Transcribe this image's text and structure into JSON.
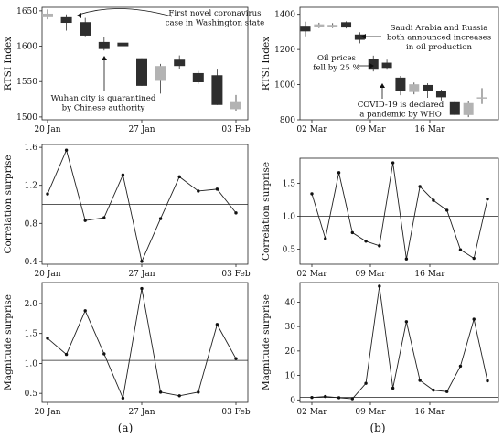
{
  "panel_labels": [
    "(a)",
    "(b)"
  ],
  "chart_data": [
    {
      "id": "a-rtsi",
      "type": "candlestick",
      "ylabel": "RTSI Index",
      "ylim": [
        1496,
        1655
      ],
      "yticks": [
        1500,
        1550,
        1600,
        1650
      ],
      "xticks": [
        "20 Jan",
        "27 Jan",
        "03 Feb"
      ],
      "candles": [
        {
          "open": 1646,
          "close": 1641,
          "high": 1652,
          "low": 1638,
          "shade": "light"
        },
        {
          "open": 1641,
          "close": 1633,
          "high": 1645,
          "low": 1622,
          "shade": "dark"
        },
        {
          "open": 1634,
          "close": 1615,
          "high": 1640,
          "low": 1614,
          "shade": "dark"
        },
        {
          "open": 1606,
          "close": 1596,
          "high": 1613,
          "low": 1594,
          "shade": "dark"
        },
        {
          "open": 1605,
          "close": 1600,
          "high": 1611,
          "low": 1595,
          "shade": "dark"
        },
        {
          "open": 1583,
          "close": 1544,
          "high": 1583,
          "low": 1544,
          "shade": "dark"
        },
        {
          "open": 1572,
          "close": 1551,
          "high": 1575,
          "low": 1533,
          "shade": "light"
        },
        {
          "open": 1581,
          "close": 1572,
          "high": 1587,
          "low": 1568,
          "shade": "dark"
        },
        {
          "open": 1562,
          "close": 1549,
          "high": 1565,
          "low": 1547,
          "shade": "dark"
        },
        {
          "open": 1559,
          "close": 1517,
          "high": 1567,
          "low": 1517,
          "shade": "dark"
        },
        {
          "open": 1521,
          "close": 1511,
          "high": 1531,
          "low": 1509,
          "shade": "light"
        }
      ],
      "annotations": [
        {
          "lines": [
            "First novel coronavirus",
            "case in Washington state"
          ]
        },
        {
          "lines": [
            "Wuhan city is quarantined",
            "by Chinese authority"
          ]
        }
      ]
    },
    {
      "id": "b-rtsi",
      "type": "candlestick",
      "ylabel": "RTSI Index",
      "ylim": [
        800,
        1440
      ],
      "yticks": [
        800,
        1000,
        1200,
        1400
      ],
      "xticks": [
        "02 Mar",
        "09 Mar",
        "16 Mar"
      ],
      "candles": [
        {
          "open": 1335,
          "close": 1303,
          "high": 1358,
          "low": 1275,
          "shade": "dark"
        },
        {
          "open": 1343,
          "close": 1330,
          "high": 1352,
          "low": 1322,
          "shade": "light"
        },
        {
          "open": 1340,
          "close": 1330,
          "high": 1350,
          "low": 1322,
          "shade": "light"
        },
        {
          "open": 1355,
          "close": 1325,
          "high": 1360,
          "low": 1320,
          "shade": "dark"
        },
        {
          "open": 1285,
          "close": 1255,
          "high": 1298,
          "low": 1235,
          "shade": "dark"
        },
        {
          "open": 1148,
          "close": 1085,
          "high": 1165,
          "low": 1075,
          "shade": "dark"
        },
        {
          "open": 1125,
          "close": 1095,
          "high": 1142,
          "low": 1085,
          "shade": "dark"
        },
        {
          "open": 1040,
          "close": 965,
          "high": 1050,
          "low": 940,
          "shade": "dark"
        },
        {
          "open": 1002,
          "close": 958,
          "high": 1012,
          "low": 945,
          "shade": "light"
        },
        {
          "open": 998,
          "close": 965,
          "high": 1008,
          "low": 925,
          "shade": "dark"
        },
        {
          "open": 962,
          "close": 928,
          "high": 972,
          "low": 910,
          "shade": "dark"
        },
        {
          "open": 900,
          "close": 828,
          "high": 910,
          "low": 825,
          "shade": "dark"
        },
        {
          "open": 895,
          "close": 827,
          "high": 905,
          "low": 815,
          "shade": "light"
        },
        {
          "open": 928,
          "close": 922,
          "high": 980,
          "low": 890,
          "shade": "light"
        }
      ],
      "annotations": [
        {
          "lines": [
            "Saudi Arabia and Russia",
            "both announced increases",
            "in oil production"
          ]
        },
        {
          "lines": [
            "Oil prices",
            "fell by 25 %"
          ]
        },
        {
          "lines": [
            "COVID-19 is declared",
            "a pandemic by WHO"
          ]
        }
      ]
    },
    {
      "id": "a-corr",
      "type": "line",
      "ylabel": "Correlation surprise",
      "ylim": [
        0.37,
        1.63
      ],
      "yticks": [
        0.4,
        0.8,
        1.2,
        1.6
      ],
      "ytick_labels": [
        "0.4",
        "0.8",
        "1.2",
        "1.6"
      ],
      "xticks": [
        "20 Jan",
        "27 Jan",
        "03 Feb"
      ],
      "reference": 1.0,
      "values": [
        1.11,
        1.57,
        0.83,
        0.86,
        1.31,
        0.4,
        0.85,
        1.29,
        1.14,
        1.16,
        0.91
      ]
    },
    {
      "id": "b-corr",
      "type": "line",
      "ylabel": "Correlation surprise",
      "ylim": [
        0.27,
        1.88
      ],
      "yticks": [
        0.5,
        1.0,
        1.5
      ],
      "ytick_labels": [
        "0.5",
        "1.0",
        "1.5"
      ],
      "xticks": [
        "02 Mar",
        "09 Mar",
        "16 Mar"
      ],
      "reference": 1.0,
      "values": [
        1.34,
        0.66,
        1.66,
        0.75,
        0.62,
        0.55,
        1.81,
        0.35,
        1.45,
        1.24,
        1.09,
        0.49,
        0.36,
        1.26
      ]
    },
    {
      "id": "a-mag",
      "type": "line",
      "ylabel": "Magnitude surprise",
      "ylim": [
        0.35,
        2.35
      ],
      "yticks": [
        0.5,
        1.0,
        1.5,
        2.0
      ],
      "ytick_labels": [
        "0.5",
        "1.0",
        "1.5",
        "2.0"
      ],
      "xticks": [
        "20 Jan",
        "27 Jan",
        "03 Feb"
      ],
      "reference": 1.05,
      "values": [
        1.42,
        1.15,
        1.88,
        1.16,
        0.42,
        2.25,
        0.52,
        0.46,
        0.52,
        1.65,
        1.08
      ]
    },
    {
      "id": "b-mag",
      "type": "line",
      "ylabel": "Magnitude surprise",
      "ylim": [
        -1,
        48
      ],
      "yticks": [
        0,
        10,
        20,
        30,
        40
      ],
      "ytick_labels": [
        "0",
        "10",
        "20",
        "30",
        "40"
      ],
      "xticks": [
        "02 Mar",
        "09 Mar",
        "16 Mar"
      ],
      "reference": 1.0,
      "values": [
        1.0,
        1.4,
        0.9,
        0.5,
        6.8,
        46.5,
        4.8,
        32.0,
        8.0,
        4.0,
        3.4,
        13.8,
        33.0,
        7.8
      ]
    }
  ]
}
